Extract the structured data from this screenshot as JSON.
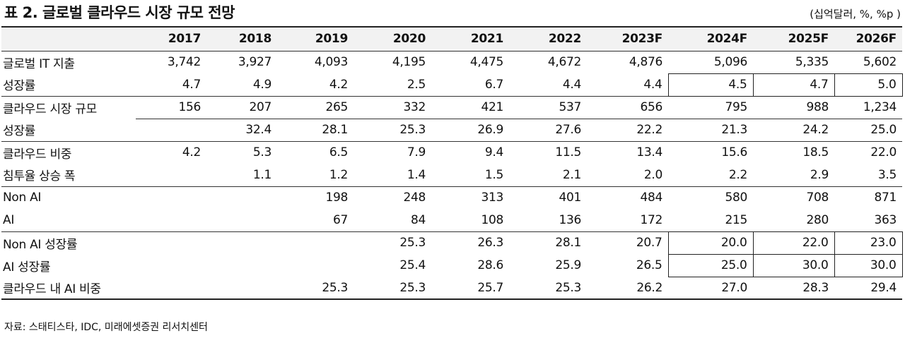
{
  "title": "표 2. 글로벌 클라우드 시장 규모 전망",
  "unit": "(십억달러, %, %p )",
  "columns": [
    "2017",
    "2018",
    "2019",
    "2020",
    "2021",
    "2022",
    "2023F",
    "2024F",
    "2025F",
    "2026F"
  ],
  "rows": [
    {
      "label": "글로벌 IT 지출",
      "values": [
        "3,742",
        "3,927",
        "4,093",
        "4,195",
        "4,475",
        "4,672",
        "4,876",
        "5,096",
        "5,335",
        "5,602"
      ]
    },
    {
      "label": "성장률",
      "values": [
        "4.7",
        "4.9",
        "4.2",
        "2.5",
        "6.7",
        "4.4",
        "4.4",
        "4.5",
        "4.7",
        "5.0"
      ]
    },
    {
      "label": "클라우드 시장 규모",
      "values": [
        "156",
        "207",
        "265",
        "332",
        "421",
        "537",
        "656",
        "795",
        "988",
        "1,234"
      ]
    },
    {
      "label": "성장률",
      "values": [
        "",
        "32.4",
        "28.1",
        "25.3",
        "26.9",
        "27.6",
        "22.2",
        "21.3",
        "24.2",
        "25.0"
      ]
    },
    {
      "label": "클라우드 비중",
      "values": [
        "4.2",
        "5.3",
        "6.5",
        "7.9",
        "9.4",
        "11.5",
        "13.4",
        "15.6",
        "18.5",
        "22.0"
      ]
    },
    {
      "label": "침투율 상승 폭",
      "values": [
        "",
        "1.1",
        "1.2",
        "1.4",
        "1.5",
        "2.1",
        "2.0",
        "2.2",
        "2.9",
        "3.5"
      ]
    },
    {
      "label": "Non AI",
      "values": [
        "",
        "",
        "198",
        "248",
        "313",
        "401",
        "484",
        "580",
        "708",
        "871"
      ]
    },
    {
      "label": "AI",
      "values": [
        "",
        "",
        "67",
        "84",
        "108",
        "136",
        "172",
        "215",
        "280",
        "363"
      ]
    },
    {
      "label": "Non AI 성장률",
      "values": [
        "",
        "",
        "",
        "25.3",
        "26.3",
        "28.1",
        "20.7",
        "20.0",
        "22.0",
        "23.0"
      ]
    },
    {
      "label": "AI 성장률",
      "values": [
        "",
        "",
        "",
        "25.4",
        "28.6",
        "25.9",
        "26.5",
        "25.0",
        "30.0",
        "30.0"
      ]
    },
    {
      "label": "클라우드 내 AI 비중",
      "values": [
        "",
        "",
        "25.3",
        "25.3",
        "25.7",
        "25.3",
        "26.2",
        "27.0",
        "28.3",
        "29.4"
      ]
    }
  ],
  "source": "자료: 스태티스타, IDC, 미래에셋증권 리서치센터"
}
